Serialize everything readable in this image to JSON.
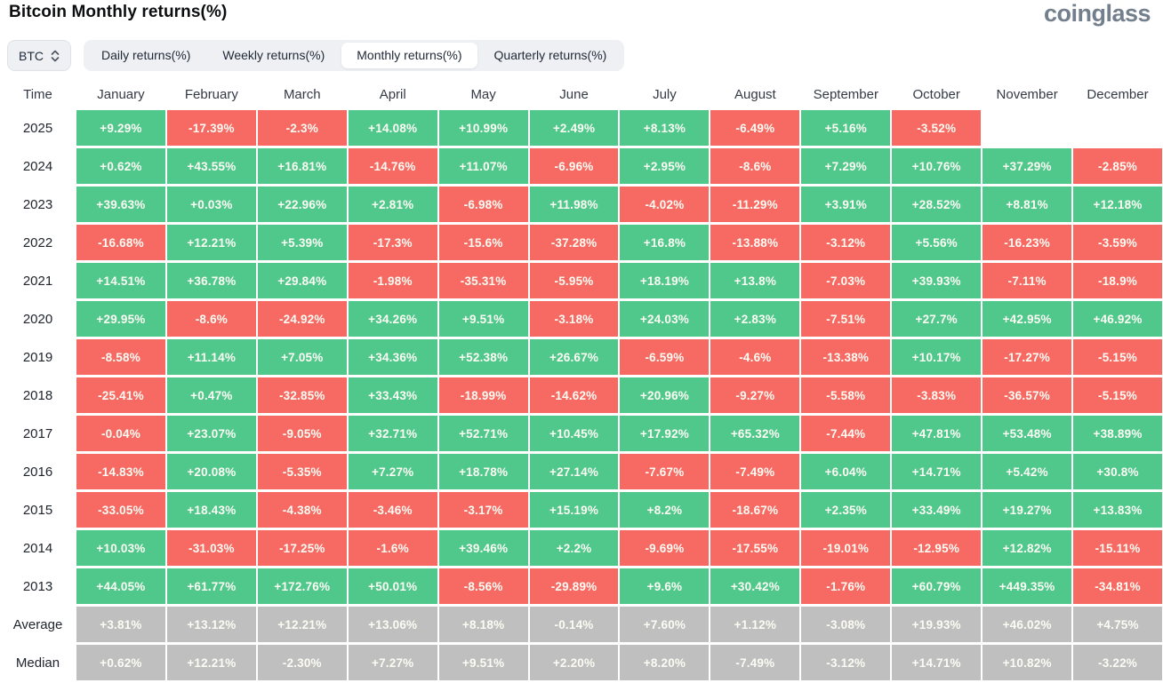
{
  "header": {
    "title": "Bitcoin Monthly returns(%)",
    "logo_text": "coinglass"
  },
  "controls": {
    "symbol_select": {
      "value": "BTC",
      "icon": "updown-chevron-icon"
    },
    "tabs": [
      {
        "label": "Daily returns(%)",
        "active": false
      },
      {
        "label": "Weekly returns(%)",
        "active": false
      },
      {
        "label": "Monthly returns(%)",
        "active": true
      },
      {
        "label": "Quarterly returns(%)",
        "active": false
      }
    ]
  },
  "colors": {
    "positive_green": "#50c88c",
    "negative_red": "#f66a63",
    "summary_gray": "#bfbfbf",
    "cell_text": "#fcfcf4"
  },
  "chart_data": {
    "type": "heatmap",
    "title": "Bitcoin Monthly returns(%)",
    "time_column_header": "Time",
    "columns": [
      "January",
      "February",
      "March",
      "April",
      "May",
      "June",
      "July",
      "August",
      "September",
      "October",
      "November",
      "December"
    ],
    "rows": [
      {
        "label": "2025",
        "kind": "year",
        "values": [
          "+9.29%",
          "-17.39%",
          "-2.3%",
          "+14.08%",
          "+10.99%",
          "+2.49%",
          "+8.13%",
          "-6.49%",
          "+5.16%",
          "-3.52%",
          "",
          ""
        ]
      },
      {
        "label": "2024",
        "kind": "year",
        "values": [
          "+0.62%",
          "+43.55%",
          "+16.81%",
          "-14.76%",
          "+11.07%",
          "-6.96%",
          "+2.95%",
          "-8.6%",
          "+7.29%",
          "+10.76%",
          "+37.29%",
          "-2.85%"
        ]
      },
      {
        "label": "2023",
        "kind": "year",
        "values": [
          "+39.63%",
          "+0.03%",
          "+22.96%",
          "+2.81%",
          "-6.98%",
          "+11.98%",
          "-4.02%",
          "-11.29%",
          "+3.91%",
          "+28.52%",
          "+8.81%",
          "+12.18%"
        ]
      },
      {
        "label": "2022",
        "kind": "year",
        "values": [
          "-16.68%",
          "+12.21%",
          "+5.39%",
          "-17.3%",
          "-15.6%",
          "-37.28%",
          "+16.8%",
          "-13.88%",
          "-3.12%",
          "+5.56%",
          "-16.23%",
          "-3.59%"
        ]
      },
      {
        "label": "2021",
        "kind": "year",
        "values": [
          "+14.51%",
          "+36.78%",
          "+29.84%",
          "-1.98%",
          "-35.31%",
          "-5.95%",
          "+18.19%",
          "+13.8%",
          "-7.03%",
          "+39.93%",
          "-7.11%",
          "-18.9%"
        ]
      },
      {
        "label": "2020",
        "kind": "year",
        "values": [
          "+29.95%",
          "-8.6%",
          "-24.92%",
          "+34.26%",
          "+9.51%",
          "-3.18%",
          "+24.03%",
          "+2.83%",
          "-7.51%",
          "+27.7%",
          "+42.95%",
          "+46.92%"
        ]
      },
      {
        "label": "2019",
        "kind": "year",
        "values": [
          "-8.58%",
          "+11.14%",
          "+7.05%",
          "+34.36%",
          "+52.38%",
          "+26.67%",
          "-6.59%",
          "-4.6%",
          "-13.38%",
          "+10.17%",
          "-17.27%",
          "-5.15%"
        ]
      },
      {
        "label": "2018",
        "kind": "year",
        "values": [
          "-25.41%",
          "+0.47%",
          "-32.85%",
          "+33.43%",
          "-18.99%",
          "-14.62%",
          "+20.96%",
          "-9.27%",
          "-5.58%",
          "-3.83%",
          "-36.57%",
          "-5.15%"
        ]
      },
      {
        "label": "2017",
        "kind": "year",
        "values": [
          "-0.04%",
          "+23.07%",
          "-9.05%",
          "+32.71%",
          "+52.71%",
          "+10.45%",
          "+17.92%",
          "+65.32%",
          "-7.44%",
          "+47.81%",
          "+53.48%",
          "+38.89%"
        ]
      },
      {
        "label": "2016",
        "kind": "year",
        "values": [
          "-14.83%",
          "+20.08%",
          "-5.35%",
          "+7.27%",
          "+18.78%",
          "+27.14%",
          "-7.67%",
          "-7.49%",
          "+6.04%",
          "+14.71%",
          "+5.42%",
          "+30.8%"
        ]
      },
      {
        "label": "2015",
        "kind": "year",
        "values": [
          "-33.05%",
          "+18.43%",
          "-4.38%",
          "-3.46%",
          "-3.17%",
          "+15.19%",
          "+8.2%",
          "-18.67%",
          "+2.35%",
          "+33.49%",
          "+19.27%",
          "+13.83%"
        ]
      },
      {
        "label": "2014",
        "kind": "year",
        "values": [
          "+10.03%",
          "-31.03%",
          "-17.25%",
          "-1.6%",
          "+39.46%",
          "+2.2%",
          "-9.69%",
          "-17.55%",
          "-19.01%",
          "-12.95%",
          "+12.82%",
          "-15.11%"
        ]
      },
      {
        "label": "2013",
        "kind": "year",
        "values": [
          "+44.05%",
          "+61.77%",
          "+172.76%",
          "+50.01%",
          "-8.56%",
          "-29.89%",
          "+9.6%",
          "+30.42%",
          "-1.76%",
          "+60.79%",
          "+449.35%",
          "-34.81%"
        ]
      },
      {
        "label": "Average",
        "kind": "summary",
        "values": [
          "+3.81%",
          "+13.12%",
          "+12.21%",
          "+13.06%",
          "+8.18%",
          "-0.14%",
          "+7.60%",
          "+1.12%",
          "-3.08%",
          "+19.93%",
          "+46.02%",
          "+4.75%"
        ]
      },
      {
        "label": "Median",
        "kind": "summary",
        "values": [
          "+0.62%",
          "+12.21%",
          "-2.30%",
          "+7.27%",
          "+9.51%",
          "+2.20%",
          "+8.20%",
          "-7.49%",
          "-3.12%",
          "+14.71%",
          "+10.82%",
          "-3.22%"
        ]
      }
    ]
  }
}
